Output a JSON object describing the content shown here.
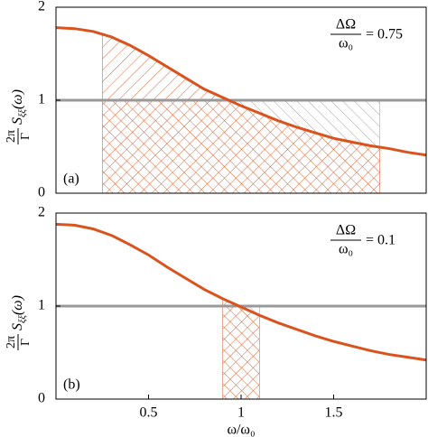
{
  "chart_data": [
    {
      "type": "line",
      "panel_label": "(a)",
      "annotation": {
        "numerator": "ΔΩ",
        "denominator": "ω₀",
        "text": "= 0.75"
      },
      "ylabel": {
        "numerator": "2π",
        "denominator": "Γ",
        "symbol": "S",
        "subscript": "ξξ",
        "argument": "(ω)"
      },
      "x": [
        0,
        0.1,
        0.2,
        0.3,
        0.4,
        0.5,
        0.6,
        0.7,
        0.8,
        0.9,
        1.0,
        1.1,
        1.2,
        1.3,
        1.4,
        1.5,
        1.6,
        1.7,
        1.8,
        1.9,
        2.0
      ],
      "series": [
        {
          "color": "#d9531e",
          "values": [
            1.78,
            1.77,
            1.74,
            1.68,
            1.59,
            1.48,
            1.36,
            1.24,
            1.12,
            1.03,
            0.94,
            0.86,
            0.78,
            0.71,
            0.65,
            0.59,
            0.55,
            0.51,
            0.48,
            0.44,
            0.41
          ]
        }
      ],
      "hline": {
        "value": 1,
        "color": "#999999"
      },
      "band": [
        0.25,
        1.75
      ],
      "xlim": [
        0,
        2
      ],
      "ylim": [
        0,
        2
      ],
      "yticks": [
        0,
        1,
        2
      ]
    },
    {
      "type": "line",
      "panel_label": "(b)",
      "annotation": {
        "numerator": "ΔΩ",
        "denominator": "ω₀",
        "text": "= 0.1"
      },
      "ylabel": {
        "numerator": "2π",
        "denominator": "Γ",
        "symbol": "S",
        "subscript": "ξξ",
        "argument": "(ω)"
      },
      "xlabel": "ω/ω₀",
      "x": [
        0,
        0.1,
        0.2,
        0.3,
        0.4,
        0.5,
        0.6,
        0.7,
        0.8,
        0.9,
        1.0,
        1.1,
        1.2,
        1.3,
        1.4,
        1.5,
        1.6,
        1.7,
        1.8,
        1.9,
        2.0
      ],
      "series": [
        {
          "color": "#d9531e",
          "values": [
            1.88,
            1.87,
            1.83,
            1.76,
            1.66,
            1.55,
            1.42,
            1.3,
            1.18,
            1.08,
            0.99,
            0.9,
            0.82,
            0.75,
            0.68,
            0.62,
            0.57,
            0.52,
            0.48,
            0.45,
            0.42
          ]
        }
      ],
      "hline": {
        "value": 1,
        "color": "#999999"
      },
      "band": [
        0.9,
        1.1
      ],
      "xlim": [
        0,
        2
      ],
      "ylim": [
        0,
        2
      ],
      "xticks": [
        0.5,
        1,
        1.5
      ],
      "yticks": [
        0,
        1,
        2
      ]
    }
  ]
}
